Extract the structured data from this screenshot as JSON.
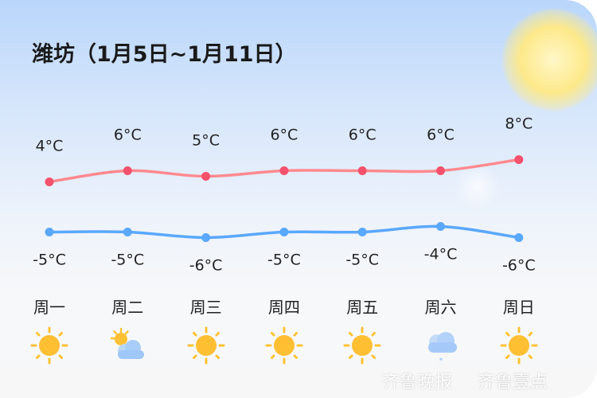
{
  "title": "潍坊（1月5日~1月11日）",
  "chart_data": {
    "type": "line",
    "categories": [
      "周一",
      "周二",
      "周三",
      "周四",
      "周五",
      "周六",
      "周日"
    ],
    "series": [
      {
        "values": [
          4,
          6,
          5,
          6,
          6,
          6,
          8
        ],
        "color": "#ff8a8f",
        "point_color": "#f4516c"
      },
      {
        "values": [
          -5,
          -5,
          -6,
          -5,
          -5,
          -4,
          -6
        ],
        "color": "#5aa8ff",
        "point_color": "#5aa8ff"
      }
    ],
    "unit": "°C",
    "grid": false
  },
  "days": [
    {
      "label": "周一",
      "weather": "sunny"
    },
    {
      "label": "周二",
      "weather": "partly-cloudy"
    },
    {
      "label": "周三",
      "weather": "sunny"
    },
    {
      "label": "周四",
      "weather": "sunny"
    },
    {
      "label": "周五",
      "weather": "sunny"
    },
    {
      "label": "周六",
      "weather": "snow"
    },
    {
      "label": "周日",
      "weather": "sunny"
    }
  ],
  "watermark": {
    "left": "齐鲁晚报",
    "right": "齐鲁壹点"
  }
}
